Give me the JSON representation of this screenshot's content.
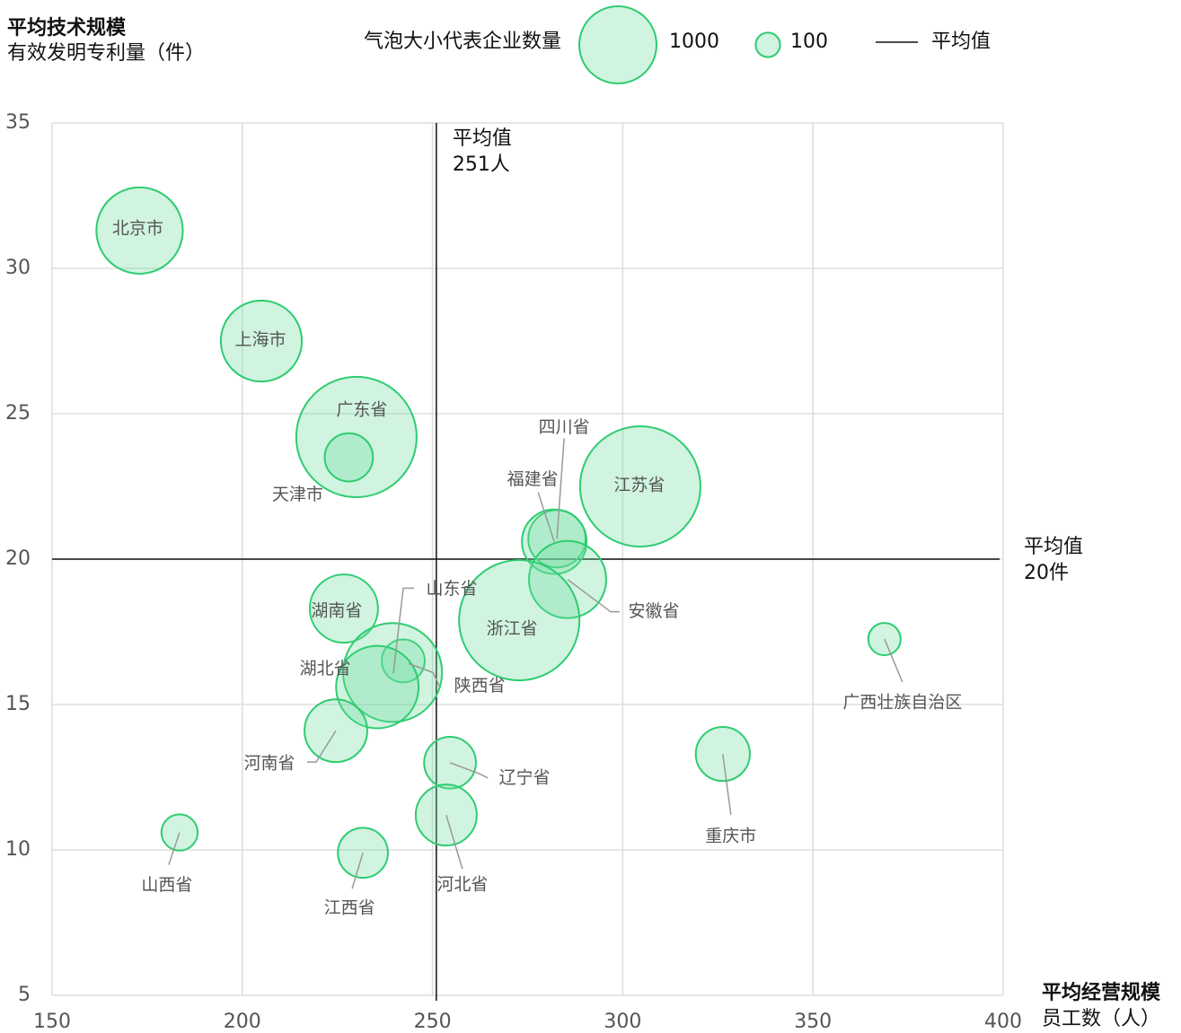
{
  "chart_data": {
    "type": "bubble",
    "y_title": "平均技术规模",
    "y_subtitle": "有效发明专利量（件）",
    "x_title": "平均经营规模",
    "x_subtitle": "员工数（人）",
    "legend_title": "气泡大小代表企业数量",
    "legend_sizes": [
      1000,
      100
    ],
    "mean_legend": "平均值",
    "xlim": [
      150,
      400
    ],
    "xticks": [
      150,
      200,
      250,
      300,
      350,
      400
    ],
    "ylim": [
      5,
      35
    ],
    "yticks": [
      5,
      10,
      15,
      20,
      25,
      30,
      35
    ],
    "grid": true,
    "color": "#2ecc71",
    "mean_x": {
      "text": "平均值",
      "value": 251,
      "label": "251人"
    },
    "mean_y": {
      "text": "平均值",
      "value": 20,
      "label": "20件"
    },
    "points": [
      {
        "name": "北京市",
        "x": 173,
        "y": 31.3,
        "size": 1250
      },
      {
        "name": "上海市",
        "x": 205,
        "y": 27.5,
        "size": 1100
      },
      {
        "name": "广东省",
        "x": 230,
        "y": 24.2,
        "size": 2430
      },
      {
        "name": "天津市",
        "x": 228,
        "y": 23.5,
        "size": 390
      },
      {
        "name": "江苏省",
        "x": 304.6,
        "y": 22.5,
        "size": 2430
      },
      {
        "name": "四川省",
        "x": 282.7,
        "y": 20.7,
        "size": 550
      },
      {
        "name": "福建省",
        "x": 282,
        "y": 20.6,
        "size": 700
      },
      {
        "name": "安徽省",
        "x": 285.5,
        "y": 19.3,
        "size": 1000
      },
      {
        "name": "浙江省",
        "x": 272.8,
        "y": 17.9,
        "size": 2430
      },
      {
        "name": "湖南省",
        "x": 226.7,
        "y": 18.3,
        "size": 780
      },
      {
        "name": "山东省",
        "x": 242.3,
        "y": 16.5,
        "size": 310
      },
      {
        "name": "陕西省",
        "x": 239.5,
        "y": 16.1,
        "size": 1640
      },
      {
        "name": "湖北省",
        "x": 235.5,
        "y": 15.6,
        "size": 1140
      },
      {
        "name": "河南省",
        "x": 224.6,
        "y": 14.1,
        "size": 660
      },
      {
        "name": "辽宁省",
        "x": 254.6,
        "y": 13.0,
        "size": 450
      },
      {
        "name": "河北省",
        "x": 253.6,
        "y": 11.2,
        "size": 625
      },
      {
        "name": "江西省",
        "x": 231.7,
        "y": 9.9,
        "size": 420
      },
      {
        "name": "山西省",
        "x": 183.5,
        "y": 10.6,
        "size": 220
      },
      {
        "name": "重庆市",
        "x": 326.3,
        "y": 13.3,
        "size": 490
      },
      {
        "name": "广西壮族自治区",
        "x": 368.8,
        "y": 17.25,
        "size": 175
      }
    ]
  }
}
